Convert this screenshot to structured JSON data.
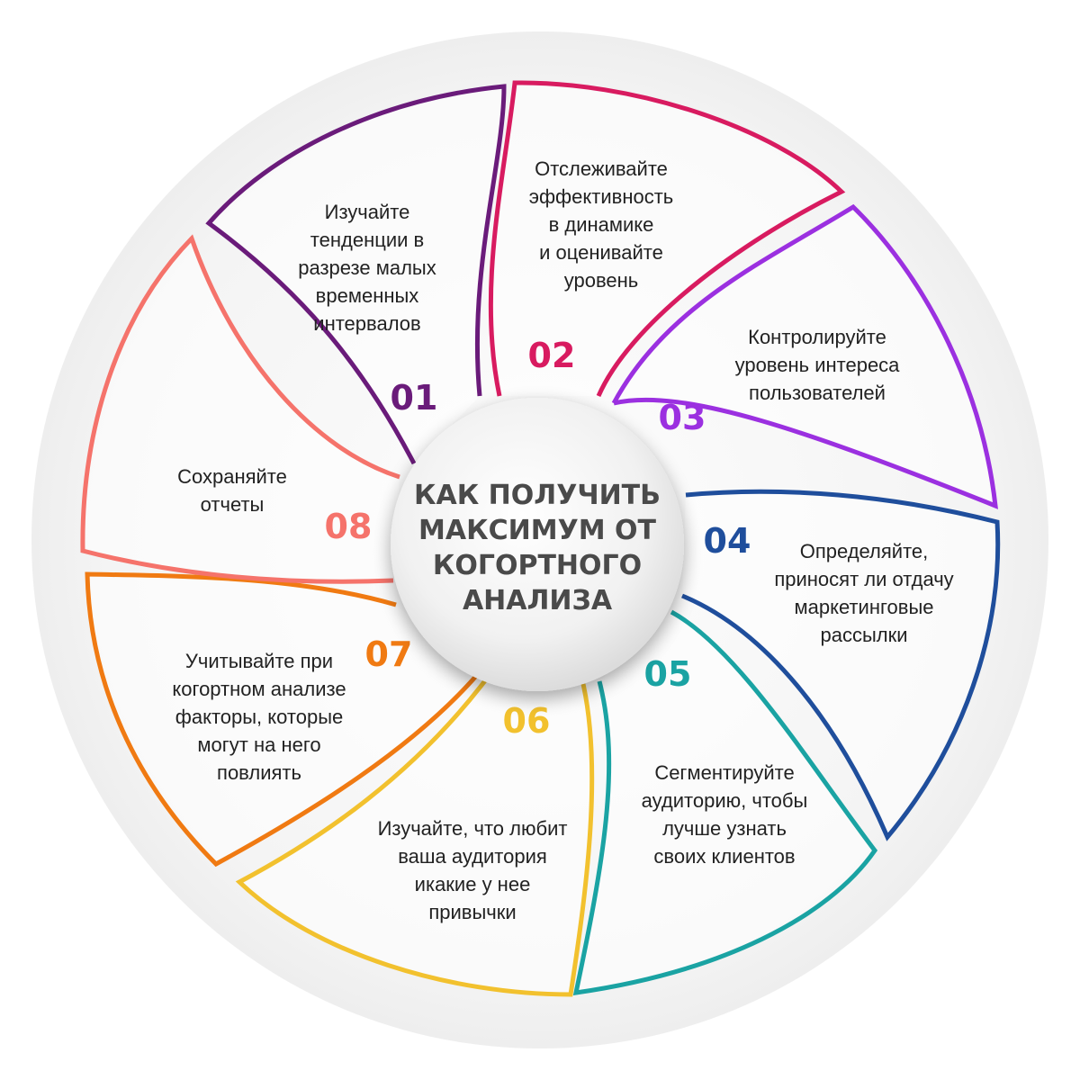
{
  "center": {
    "title_lines": [
      "КАК ПОЛУЧИТЬ",
      "МАКСИМУМ ОТ",
      "КОГОРТНОГО",
      "АНАЛИЗА"
    ]
  },
  "items": [
    {
      "number": "01",
      "color": "#6a1b7a",
      "accent": "#c2185b",
      "lines": [
        "Изучайте",
        "тенденции в",
        "разрезе малых",
        "временных",
        "интервалов"
      ]
    },
    {
      "number": "02",
      "color": "#d81b60",
      "accent": "#b71c3c",
      "lines": [
        "Отслеживайте",
        "эффективность",
        "в динамике",
        "и оценивайте",
        "уровень"
      ]
    },
    {
      "number": "03",
      "color": "#9b30e0",
      "accent": "#7e57c2",
      "lines": [
        "Контролируйте",
        "уровень интереса",
        "пользователей"
      ]
    },
    {
      "number": "04",
      "color": "#1f4e9c",
      "accent": "#1e88e5",
      "lines": [
        "Определяйте,",
        "приносят ли отдачу",
        "маркетинговые",
        "рассылки"
      ]
    },
    {
      "number": "05",
      "color": "#1aa3a3",
      "accent": "#1db954",
      "lines": [
        "Сегментируйте",
        "аудиторию, чтобы",
        "лучше узнать",
        "своих клиентов"
      ]
    },
    {
      "number": "06",
      "color": "#f2c12e",
      "accent": "#f5b400",
      "lines": [
        "Изучайте, что любит",
        "ваша аудитория",
        "икакие у нее",
        "привычки"
      ]
    },
    {
      "number": "07",
      "color": "#f07a12",
      "accent": "#ef5a24",
      "lines": [
        "Учитывайте при",
        "когортном анализе",
        "факторы, которые",
        "могут на него",
        "повлиять"
      ]
    },
    {
      "number": "08",
      "color": "#f5736b",
      "accent": "#ec407a",
      "lines": [
        "Сохраняйте",
        "отчеты"
      ]
    }
  ]
}
